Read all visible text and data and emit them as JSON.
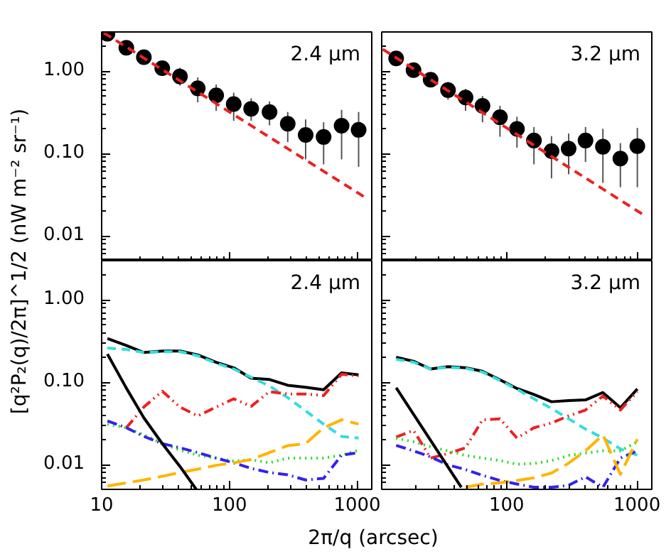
{
  "chart_data": [
    {
      "type": "scatter",
      "ylabel": "[q²P₂(q)/2π]^1/2 (nW m⁻² sr⁻¹)",
      "annotations": [
        "2.4 μm"
      ],
      "log": "xy",
      "grid": false,
      "tick_labels": "y",
      "xlim": [
        10,
        1300
      ],
      "ylim": [
        0.005,
        3
      ],
      "xticks": [
        10,
        100,
        1000
      ],
      "yticks": [
        {
          "value": 1,
          "label": "1.00"
        },
        {
          "value": 0.1,
          "label": "0.10"
        },
        {
          "value": 0.01,
          "label": "0.01"
        }
      ],
      "series": [
        {
          "type": "scatter",
          "marker": "circle",
          "color": "#000000",
          "x": [
            11.1,
            15.6,
            21.4,
            29.8,
            41,
            56.5,
            78.8,
            108,
            148,
            206,
            286,
            395,
            546,
            755,
            1026
          ],
          "values": [
            2.86,
            1.93,
            1.48,
            1.09,
            0.865,
            0.62,
            0.51,
            0.4,
            0.35,
            0.32,
            0.23,
            0.168,
            0.159,
            0.218,
            0.194
          ],
          "errors": [
            null,
            [
              1.75,
              2.1
            ],
            [
              1.28,
              1.67
            ],
            [
              0.9,
              1.3
            ],
            [
              0.67,
              1.1
            ],
            [
              0.42,
              0.84
            ],
            [
              0.33,
              0.69
            ],
            [
              0.25,
              0.55
            ],
            [
              0.25,
              0.47
            ],
            [
              0.22,
              0.43
            ],
            [
              0.138,
              0.32
            ],
            [
              0.085,
              0.26
            ],
            [
              0.074,
              0.24
            ],
            [
              0.085,
              0.34
            ],
            [
              0.069,
              0.32
            ]
          ]
        },
        {
          "type": "line",
          "line_style": "dashed",
          "color": "#ee2020",
          "x": [
            10.4,
            1210
          ],
          "values": [
            2.93,
            0.028
          ]
        }
      ]
    },
    {
      "type": "scatter",
      "annotations": [
        "3.2 μm"
      ],
      "log": "xy",
      "grid": false,
      "tick_labels": false,
      "xlim": [
        11,
        1300
      ],
      "ylim": [
        0.005,
        3
      ],
      "xticks": [
        100,
        1000
      ],
      "yticks": [
        1,
        0.1,
        0.01
      ],
      "series": [
        {
          "type": "scatter",
          "marker": "circle",
          "color": "#000000",
          "x": [
            14.2,
            19.3,
            26.1,
            35.5,
            48.4,
            65.3,
            88.9,
            120,
            162,
            221,
            299,
            403,
            548,
            746,
            1007
          ],
          "values": [
            1.43,
            1.03,
            0.79,
            0.59,
            0.48,
            0.38,
            0.276,
            0.199,
            0.144,
            0.107,
            0.115,
            0.144,
            0.121,
            0.087,
            0.123
          ],
          "errors": [
            [
              1.28,
              1.58
            ],
            [
              0.9,
              1.14
            ],
            [
              0.67,
              0.9
            ],
            [
              0.45,
              0.74
            ],
            [
              0.33,
              0.61
            ],
            [
              0.24,
              0.5
            ],
            [
              0.16,
              0.38
            ],
            [
              0.118,
              0.28
            ],
            [
              0.074,
              0.21
            ],
            [
              0.05,
              0.163
            ],
            [
              0.056,
              0.175
            ],
            [
              0.079,
              0.21
            ],
            [
              0.044,
              0.2
            ],
            [
              0.039,
              0.134
            ],
            [
              0.039,
              0.205
            ]
          ]
        },
        {
          "type": "line",
          "line_style": "dashed",
          "color": "#ee2020",
          "x": [
            11.2,
            1183
          ],
          "values": [
            1.85,
            0.0171
          ]
        }
      ]
    },
    {
      "type": "line",
      "xlabel": "2π/q (arcsec)",
      "annotations": [
        "2.4 μm"
      ],
      "log": "xy",
      "grid": false,
      "xlim": [
        10,
        1300
      ],
      "ylim": [
        0.005,
        3
      ],
      "xticks": [
        10,
        100,
        1000
      ],
      "yticks": [
        {
          "value": 1,
          "label": "1.00"
        },
        {
          "value": 0.1,
          "label": "0.10"
        },
        {
          "value": 0.01,
          "label": "0.01"
        }
      ],
      "x": [
        11.1,
        15.6,
        21.4,
        29.8,
        41,
        56.5,
        78.8,
        108,
        148,
        206,
        286,
        395,
        546,
        755,
        1026
      ],
      "series": [
        {
          "line_style": "solid",
          "color": "#000000",
          "values": [
            0.34,
            0.28,
            0.23,
            0.24,
            0.24,
            0.215,
            0.175,
            0.15,
            0.112,
            0.108,
            0.092,
            0.087,
            0.081,
            0.13,
            0.123
          ]
        },
        {
          "line_style": "dashed",
          "color": "#33dddd",
          "values": [
            0.26,
            0.25,
            0.23,
            0.235,
            0.235,
            0.21,
            0.17,
            0.145,
            0.115,
            0.09,
            0.065,
            0.045,
            0.031,
            0.022,
            0.021
          ]
        },
        {
          "line_style": "dashdotdot",
          "color": "#ee2020",
          "values": [
            null,
            0.028,
            0.05,
            0.078,
            0.05,
            0.039,
            0.05,
            0.063,
            0.051,
            0.077,
            0.072,
            0.072,
            0.069,
            0.125,
            0.12
          ]
        },
        {
          "line_style": "dotted",
          "color": "#22dd22",
          "values": [
            0.031,
            0.028,
            0.023,
            0.018,
            0.015,
            0.013,
            0.012,
            0.011,
            0.0115,
            0.0105,
            0.012,
            0.012,
            0.012,
            0.013,
            0.015
          ]
        },
        {
          "line_style": "dashdot",
          "color": "#3322ee",
          "values": [
            0.034,
            0.028,
            0.022,
            0.018,
            0.016,
            0.014,
            0.012,
            0.0105,
            0.009,
            0.008,
            0.0075,
            0.0065,
            0.0068,
            0.013,
            0.014
          ]
        },
        {
          "line_style": "longdash",
          "color": "#ffb400",
          "values": [
            0.0055,
            0.006,
            0.0065,
            0.0072,
            0.008,
            0.0088,
            0.0098,
            0.0105,
            0.0115,
            0.014,
            0.017,
            0.018,
            0.028,
            0.035,
            0.031
          ]
        },
        {
          "line_style": "solid",
          "color": "#000000",
          "x": [
            11.1,
            15.6,
            21.4,
            29.8,
            41,
            55
          ],
          "values": [
            0.22,
            0.085,
            0.037,
            0.018,
            0.0095,
            0.005
          ]
        }
      ]
    },
    {
      "type": "line",
      "annotations": [
        "3.2 μm"
      ],
      "log": "xy",
      "grid": false,
      "tick_labels": "x",
      "xlim": [
        11,
        1300
      ],
      "ylim": [
        0.005,
        3
      ],
      "xticks": [
        100,
        1000
      ],
      "yticks": [
        1,
        0.1,
        0.01
      ],
      "x": [
        14.2,
        19.3,
        26.1,
        35.5,
        48.4,
        65.3,
        88.9,
        120,
        162,
        221,
        299,
        403,
        548,
        746,
        1007
      ],
      "series": [
        {
          "line_style": "solid",
          "color": "#000000",
          "values": [
            0.201,
            0.18,
            0.145,
            0.155,
            0.15,
            0.136,
            0.107,
            0.084,
            0.071,
            0.058,
            0.06,
            0.061,
            0.075,
            0.049,
            0.083
          ]
        },
        {
          "line_style": "dashed",
          "color": "#33dddd",
          "values": [
            0.19,
            0.175,
            0.145,
            0.152,
            0.148,
            0.133,
            0.105,
            0.082,
            0.063,
            0.048,
            0.036,
            0.027,
            0.021,
            0.0155,
            0.013
          ]
        },
        {
          "line_style": "dashdotdot",
          "color": "#ee2020",
          "values": [
            0.0216,
            0.026,
            0.012,
            0.0136,
            0.016,
            0.035,
            0.036,
            0.021,
            0.028,
            0.032,
            0.039,
            0.046,
            0.068,
            0.046,
            0.077
          ]
        },
        {
          "line_style": "dotted",
          "color": "#22dd22",
          "values": [
            0.021,
            0.0189,
            0.0165,
            0.0147,
            0.0129,
            0.012,
            0.0112,
            0.0101,
            0.0103,
            0.0112,
            0.0129,
            0.0138,
            0.0147,
            0.0147,
            0.0189
          ]
        },
        {
          "line_style": "dashdot",
          "color": "#3322ee",
          "values": [
            0.0171,
            0.0147,
            0.0124,
            0.0099,
            0.0087,
            0.0074,
            0.0064,
            0.0058,
            0.0053,
            0.0053,
            0.0056,
            0.0071,
            0.0053,
            0.012,
            0.0147
          ]
        },
        {
          "line_style": "longdash",
          "color": "#ffb400",
          "values": [
            null,
            null,
            null,
            null,
            0.0053,
            0.0058,
            0.006,
            0.0064,
            0.0069,
            0.0079,
            0.0104,
            0.0147,
            0.023,
            0.0076,
            0.0203
          ]
        },
        {
          "line_style": "solid",
          "color": "#000000",
          "x": [
            14.2,
            44.9
          ],
          "values": [
            0.086,
            0.0053
          ]
        }
      ]
    }
  ]
}
